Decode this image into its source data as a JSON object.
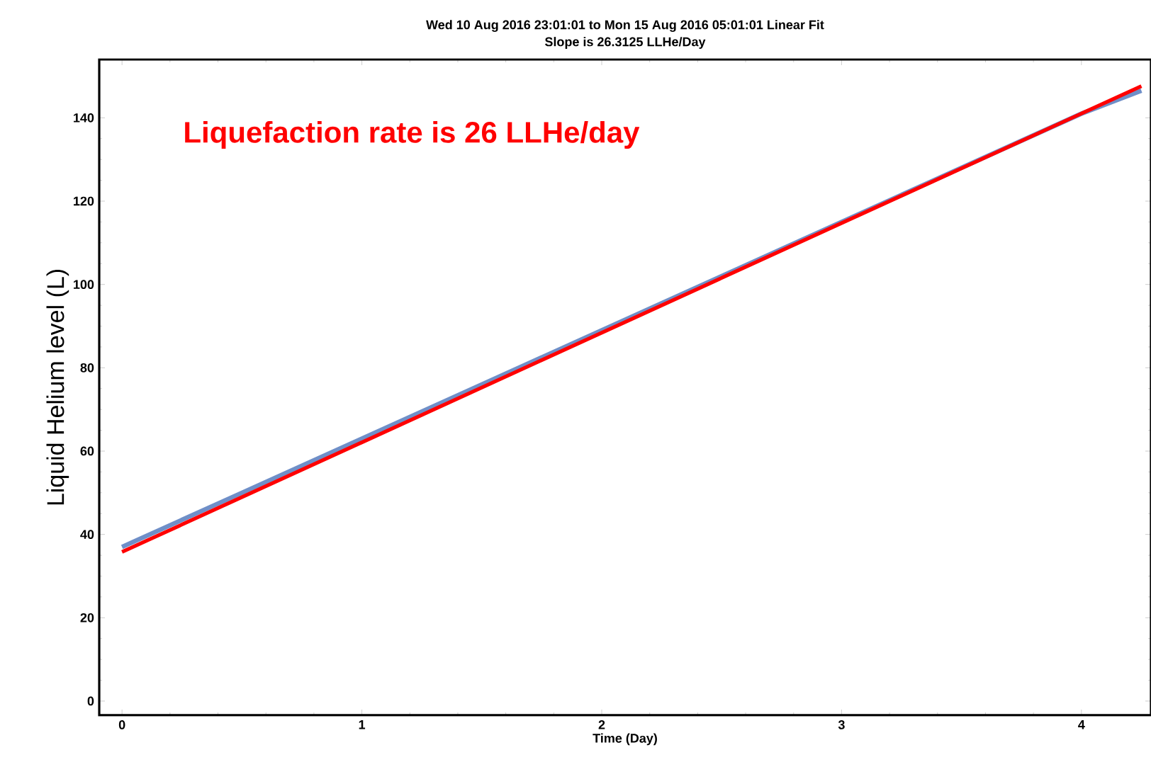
{
  "chart_data": {
    "type": "line",
    "title": "Wed 10 Aug 2016 23:01:01 to Mon 15 Aug 2016 05:01:01 Linear Fit",
    "subtitle": "Slope is 26.3125 LLHe/Day",
    "xlabel": "Time (Day)",
    "ylabel": "Liquid Helium level (L)",
    "annotations": [
      "Liquefaction rate is 26 LLHe/day"
    ],
    "series": [
      {
        "color": "#6f8fc8",
        "x": [
          0,
          0.5,
          1,
          1.5,
          2,
          2.5,
          3,
          3.5,
          4,
          4.25
        ],
        "values": [
          37,
          50,
          63,
          76,
          89,
          102,
          115,
          128,
          141,
          146.5
        ]
      },
      {
        "color": "#ff0000",
        "x": [
          0,
          4.25
        ],
        "values": [
          35.8,
          147.6
        ]
      }
    ],
    "xlim": [
      -0.095,
      4.29
    ],
    "ylim": [
      -3.4,
      154
    ],
    "xticks": [
      0,
      1,
      2,
      3,
      4
    ],
    "yticks": [
      0,
      20,
      40,
      60,
      80,
      100,
      120,
      140
    ]
  }
}
